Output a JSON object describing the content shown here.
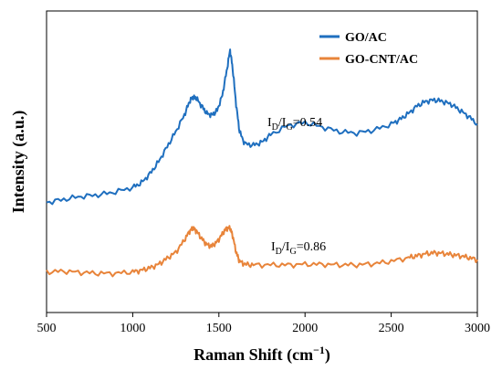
{
  "chart_data": {
    "type": "line",
    "xlabel": "Raman Shift (cm",
    "xlabel_sup": "−1",
    "xlabel_close": ")",
    "ylabel": "Intensity (a.u.)",
    "xlim": [
      500,
      3000
    ],
    "ylim": [
      0,
      1
    ],
    "x_ticks": [
      "500",
      "1000",
      "1500",
      "2000",
      "2500",
      "3000"
    ],
    "legend_position": "top-right",
    "grid": false,
    "series": [
      {
        "name": "GO/AC",
        "color": "#1f6fbf",
        "x": [
          500,
          600,
          700,
          800,
          900,
          1000,
          1050,
          1100,
          1150,
          1200,
          1250,
          1300,
          1330,
          1350,
          1370,
          1400,
          1430,
          1460,
          1490,
          1520,
          1545,
          1565,
          1580,
          1600,
          1620,
          1650,
          1700,
          1750,
          1800,
          1900,
          2000,
          2100,
          2200,
          2300,
          2400,
          2500,
          2550,
          2600,
          2650,
          2700,
          2750,
          2800,
          2850,
          2900,
          2950,
          3000
        ],
        "y": [
          0.365,
          0.375,
          0.385,
          0.39,
          0.4,
          0.415,
          0.43,
          0.46,
          0.5,
          0.55,
          0.6,
          0.655,
          0.7,
          0.715,
          0.71,
          0.685,
          0.66,
          0.655,
          0.67,
          0.72,
          0.8,
          0.87,
          0.81,
          0.69,
          0.6,
          0.56,
          0.555,
          0.565,
          0.59,
          0.62,
          0.63,
          0.615,
          0.6,
          0.595,
          0.605,
          0.625,
          0.64,
          0.66,
          0.685,
          0.7,
          0.705,
          0.7,
          0.69,
          0.67,
          0.65,
          0.625
        ]
      },
      {
        "name": "GO-CNT/AC",
        "color": "#e8843a",
        "x": [
          500,
          600,
          700,
          800,
          900,
          1000,
          1050,
          1100,
          1150,
          1200,
          1250,
          1300,
          1330,
          1350,
          1370,
          1400,
          1430,
          1460,
          1490,
          1520,
          1545,
          1565,
          1580,
          1600,
          1620,
          1650,
          1700,
          1800,
          1900,
          2000,
          2100,
          2200,
          2300,
          2400,
          2500,
          2600,
          2650,
          2700,
          2750,
          2800,
          2850,
          2900,
          2950,
          3000
        ],
        "y": [
          0.135,
          0.137,
          0.133,
          0.13,
          0.13,
          0.135,
          0.14,
          0.148,
          0.16,
          0.18,
          0.2,
          0.24,
          0.27,
          0.28,
          0.27,
          0.245,
          0.225,
          0.22,
          0.235,
          0.26,
          0.28,
          0.28,
          0.255,
          0.2,
          0.17,
          0.16,
          0.158,
          0.158,
          0.158,
          0.16,
          0.16,
          0.158,
          0.158,
          0.162,
          0.17,
          0.182,
          0.188,
          0.195,
          0.198,
          0.196,
          0.192,
          0.188,
          0.182,
          0.175
        ]
      }
    ],
    "annotations": [
      {
        "text_main": "I",
        "sub1": "D",
        "slash": "/I",
        "sub2": "G",
        "value": "=0.54"
      },
      {
        "text_main": "I",
        "sub1": "D",
        "slash": "/I",
        "sub2": "G",
        "value": "=0.86"
      }
    ]
  }
}
